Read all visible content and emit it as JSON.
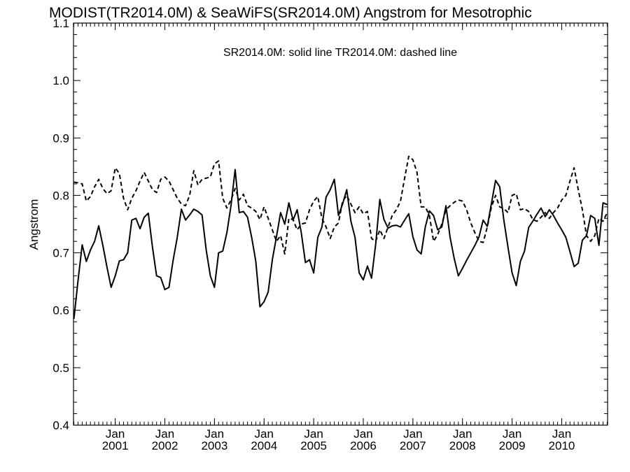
{
  "chart_data": {
    "type": "line",
    "title": "MODIST(TR2014.0M) & SeaWiFS(SR2014.0M)  Angstrom for Mesotrophic",
    "annotation": "SR2014.0M: solid line   TR2014.0M: dashed line",
    "xlabel": "",
    "ylabel": "Angstrom",
    "ylim": [
      0.4,
      1.1
    ],
    "xlim": [
      "2000-03",
      "2010-12"
    ],
    "yticks": [
      "0.4",
      "0.5",
      "0.6",
      "0.7",
      "0.8",
      "0.9",
      "1.0",
      "1.1"
    ],
    "xticks": [
      {
        "month": "Jan",
        "year": "2001",
        "date": "2001-01"
      },
      {
        "month": "Jan",
        "year": "2002",
        "date": "2002-01"
      },
      {
        "month": "Jan",
        "year": "2003",
        "date": "2003-01"
      },
      {
        "month": "Jan",
        "year": "2004",
        "date": "2004-01"
      },
      {
        "month": "Jan",
        "year": "2005",
        "date": "2005-01"
      },
      {
        "month": "Jan",
        "year": "2006",
        "date": "2006-01"
      },
      {
        "month": "Jan",
        "year": "2007",
        "date": "2007-01"
      },
      {
        "month": "Jan",
        "year": "2008",
        "date": "2008-01"
      },
      {
        "month": "Jan",
        "year": "2009",
        "date": "2009-01"
      },
      {
        "month": "Jan",
        "year": "2010",
        "date": "2010-01"
      }
    ],
    "grid": false,
    "series": [
      {
        "name": "SR2014.0M",
        "style": "solid",
        "color": "#000000",
        "points": [
          [
            "2000-03",
            0.585
          ],
          [
            "2000-04",
            0.652
          ],
          [
            "2000-05",
            0.714
          ],
          [
            "2000-06",
            0.685
          ],
          [
            "2000-07",
            0.705
          ],
          [
            "2000-08",
            0.72
          ],
          [
            "2000-09",
            0.747
          ],
          [
            "2000-10",
            0.713
          ],
          [
            "2000-11",
            0.675
          ],
          [
            "2000-12",
            0.64
          ],
          [
            "2001-01",
            0.66
          ],
          [
            "2001-02",
            0.686
          ],
          [
            "2001-03",
            0.688
          ],
          [
            "2001-04",
            0.7
          ],
          [
            "2001-05",
            0.757
          ],
          [
            "2001-06",
            0.76
          ],
          [
            "2001-07",
            0.742
          ],
          [
            "2001-08",
            0.762
          ],
          [
            "2001-09",
            0.769
          ],
          [
            "2001-10",
            0.71
          ],
          [
            "2001-11",
            0.66
          ],
          [
            "2001-12",
            0.657
          ],
          [
            "2002-01",
            0.636
          ],
          [
            "2002-02",
            0.64
          ],
          [
            "2002-03",
            0.687
          ],
          [
            "2002-04",
            0.727
          ],
          [
            "2002-05",
            0.776
          ],
          [
            "2002-06",
            0.757
          ],
          [
            "2002-07",
            0.766
          ],
          [
            "2002-08",
            0.776
          ],
          [
            "2002-09",
            0.772
          ],
          [
            "2002-10",
            0.766
          ],
          [
            "2002-11",
            0.705
          ],
          [
            "2002-12",
            0.66
          ],
          [
            "2003-01",
            0.64
          ],
          [
            "2003-02",
            0.7
          ],
          [
            "2003-03",
            0.703
          ],
          [
            "2003-04",
            0.735
          ],
          [
            "2003-05",
            0.782
          ],
          [
            "2003-06",
            0.845
          ],
          [
            "2003-07",
            0.77
          ],
          [
            "2003-08",
            0.772
          ],
          [
            "2003-09",
            0.762
          ],
          [
            "2003-10",
            0.727
          ],
          [
            "2003-11",
            0.685
          ],
          [
            "2003-12",
            0.606
          ],
          [
            "2004-01",
            0.615
          ],
          [
            "2004-02",
            0.632
          ],
          [
            "2004-03",
            0.688
          ],
          [
            "2004-04",
            0.728
          ],
          [
            "2004-05",
            0.77
          ],
          [
            "2004-06",
            0.75
          ],
          [
            "2004-07",
            0.787
          ],
          [
            "2004-08",
            0.757
          ],
          [
            "2004-09",
            0.775
          ],
          [
            "2004-10",
            0.735
          ],
          [
            "2004-11",
            0.683
          ],
          [
            "2004-12",
            0.688
          ],
          [
            "2005-01",
            0.665
          ],
          [
            "2005-02",
            0.727
          ],
          [
            "2005-03",
            0.745
          ],
          [
            "2005-04",
            0.797
          ],
          [
            "2005-05",
            0.81
          ],
          [
            "2005-06",
            0.828
          ],
          [
            "2005-07",
            0.765
          ],
          [
            "2005-08",
            0.785
          ],
          [
            "2005-09",
            0.81
          ],
          [
            "2005-10",
            0.755
          ],
          [
            "2005-11",
            0.727
          ],
          [
            "2005-12",
            0.665
          ],
          [
            "2006-01",
            0.653
          ],
          [
            "2006-02",
            0.677
          ],
          [
            "2006-03",
            0.656
          ],
          [
            "2006-04",
            0.715
          ],
          [
            "2006-05",
            0.793
          ],
          [
            "2006-06",
            0.758
          ],
          [
            "2006-07",
            0.743
          ],
          [
            "2006-08",
            0.747
          ],
          [
            "2006-09",
            0.748
          ],
          [
            "2006-10",
            0.745
          ],
          [
            "2006-11",
            0.757
          ],
          [
            "2006-12",
            0.768
          ],
          [
            "2007-01",
            0.728
          ],
          [
            "2007-02",
            0.705
          ],
          [
            "2007-03",
            0.698
          ],
          [
            "2007-04",
            0.745
          ],
          [
            "2007-05",
            0.773
          ],
          [
            "2007-06",
            0.765
          ],
          [
            "2007-07",
            0.74
          ],
          [
            "2007-08",
            0.745
          ],
          [
            "2007-09",
            0.782
          ],
          [
            "2007-10",
            0.727
          ],
          [
            "2007-11",
            0.69
          ],
          [
            "2007-12",
            0.66
          ],
          [
            "2008-01",
            0.673
          ],
          [
            "2008-02",
            0.687
          ],
          [
            "2008-03",
            0.7
          ],
          [
            "2008-04",
            0.713
          ],
          [
            "2008-05",
            0.728
          ],
          [
            "2008-06",
            0.757
          ],
          [
            "2008-07",
            0.746
          ],
          [
            "2008-08",
            0.786
          ],
          [
            "2008-09",
            0.826
          ],
          [
            "2008-10",
            0.815
          ],
          [
            "2008-11",
            0.757
          ],
          [
            "2008-12",
            0.71
          ],
          [
            "2009-01",
            0.665
          ],
          [
            "2009-02",
            0.643
          ],
          [
            "2009-03",
            0.685
          ],
          [
            "2009-04",
            0.703
          ],
          [
            "2009-05",
            0.744
          ],
          [
            "2009-06",
            0.755
          ],
          [
            "2009-07",
            0.767
          ],
          [
            "2009-08",
            0.778
          ],
          [
            "2009-09",
            0.763
          ],
          [
            "2009-10",
            0.775
          ],
          [
            "2009-11",
            0.765
          ],
          [
            "2009-12",
            0.752
          ],
          [
            "2010-01",
            0.74
          ],
          [
            "2010-02",
            0.727
          ],
          [
            "2010-03",
            0.702
          ],
          [
            "2010-04",
            0.676
          ],
          [
            "2010-05",
            0.682
          ],
          [
            "2010-06",
            0.722
          ],
          [
            "2010-07",
            0.73
          ],
          [
            "2010-08",
            0.765
          ],
          [
            "2010-09",
            0.76
          ],
          [
            "2010-10",
            0.713
          ],
          [
            "2010-11",
            0.787
          ],
          [
            "2010-12",
            0.784
          ]
        ]
      },
      {
        "name": "TR2014.0M",
        "style": "dashed",
        "color": "#000000",
        "points": [
          [
            "2000-03",
            0.823
          ],
          [
            "2000-04",
            0.822
          ],
          [
            "2000-05",
            0.82
          ],
          [
            "2000-06",
            0.79
          ],
          [
            "2000-07",
            0.798
          ],
          [
            "2000-08",
            0.815
          ],
          [
            "2000-09",
            0.828
          ],
          [
            "2000-10",
            0.812
          ],
          [
            "2000-11",
            0.803
          ],
          [
            "2000-12",
            0.808
          ],
          [
            "2001-01",
            0.848
          ],
          [
            "2001-02",
            0.838
          ],
          [
            "2001-03",
            0.795
          ],
          [
            "2001-04",
            0.775
          ],
          [
            "2001-05",
            0.795
          ],
          [
            "2001-06",
            0.808
          ],
          [
            "2001-07",
            0.825
          ],
          [
            "2001-08",
            0.84
          ],
          [
            "2001-09",
            0.825
          ],
          [
            "2001-10",
            0.81
          ],
          [
            "2001-11",
            0.805
          ],
          [
            "2001-12",
            0.828
          ],
          [
            "2002-01",
            0.832
          ],
          [
            "2002-02",
            0.825
          ],
          [
            "2002-03",
            0.81
          ],
          [
            "2002-04",
            0.795
          ],
          [
            "2002-05",
            0.785
          ],
          [
            "2002-06",
            0.782
          ],
          [
            "2002-07",
            0.8
          ],
          [
            "2002-08",
            0.843
          ],
          [
            "2002-09",
            0.818
          ],
          [
            "2002-10",
            0.828
          ],
          [
            "2002-11",
            0.83
          ],
          [
            "2002-12",
            0.832
          ],
          [
            "2003-01",
            0.855
          ],
          [
            "2003-02",
            0.86
          ],
          [
            "2003-03",
            0.795
          ],
          [
            "2003-04",
            0.778
          ],
          [
            "2003-05",
            0.792
          ],
          [
            "2003-06",
            0.812
          ],
          [
            "2003-07",
            0.792
          ],
          [
            "2003-08",
            0.802
          ],
          [
            "2003-09",
            0.782
          ],
          [
            "2003-10",
            0.778
          ],
          [
            "2003-11",
            0.772
          ],
          [
            "2003-12",
            0.758
          ],
          [
            "2004-01",
            0.78
          ],
          [
            "2004-02",
            0.76
          ],
          [
            "2004-03",
            0.74
          ],
          [
            "2004-04",
            0.72
          ],
          [
            "2004-05",
            0.73
          ],
          [
            "2004-06",
            0.698
          ],
          [
            "2004-07",
            0.76
          ],
          [
            "2004-08",
            0.758
          ],
          [
            "2004-09",
            0.74
          ],
          [
            "2004-10",
            0.75
          ],
          [
            "2004-11",
            0.752
          ],
          [
            "2004-12",
            0.775
          ],
          [
            "2005-01",
            0.79
          ],
          [
            "2005-02",
            0.798
          ],
          [
            "2005-03",
            0.76
          ],
          [
            "2005-04",
            0.745
          ],
          [
            "2005-05",
            0.725
          ],
          [
            "2005-06",
            0.745
          ],
          [
            "2005-07",
            0.752
          ],
          [
            "2005-08",
            0.79
          ],
          [
            "2005-09",
            0.8
          ],
          [
            "2005-10",
            0.785
          ],
          [
            "2005-11",
            0.77
          ],
          [
            "2005-12",
            0.78
          ],
          [
            "2006-01",
            0.768
          ],
          [
            "2006-02",
            0.772
          ],
          [
            "2006-03",
            0.725
          ],
          [
            "2006-04",
            0.72
          ],
          [
            "2006-05",
            0.74
          ],
          [
            "2006-06",
            0.725
          ],
          [
            "2006-07",
            0.745
          ],
          [
            "2006-08",
            0.765
          ],
          [
            "2006-09",
            0.775
          ],
          [
            "2006-10",
            0.79
          ],
          [
            "2006-11",
            0.83
          ],
          [
            "2006-12",
            0.868
          ],
          [
            "2007-01",
            0.862
          ],
          [
            "2007-02",
            0.84
          ],
          [
            "2007-03",
            0.78
          ],
          [
            "2007-04",
            0.78
          ],
          [
            "2007-05",
            0.765
          ],
          [
            "2007-06",
            0.72
          ],
          [
            "2007-07",
            0.732
          ],
          [
            "2007-08",
            0.75
          ],
          [
            "2007-09",
            0.775
          ],
          [
            "2007-10",
            0.782
          ],
          [
            "2007-11",
            0.788
          ],
          [
            "2007-12",
            0.792
          ],
          [
            "2008-01",
            0.79
          ],
          [
            "2008-02",
            0.775
          ],
          [
            "2008-03",
            0.752
          ],
          [
            "2008-04",
            0.735
          ],
          [
            "2008-05",
            0.72
          ],
          [
            "2008-06",
            0.718
          ],
          [
            "2008-07",
            0.745
          ],
          [
            "2008-08",
            0.78
          ],
          [
            "2008-09",
            0.8
          ],
          [
            "2008-10",
            0.78
          ],
          [
            "2008-11",
            0.777
          ],
          [
            "2008-12",
            0.77
          ],
          [
            "2009-01",
            0.8
          ],
          [
            "2009-02",
            0.803
          ],
          [
            "2009-03",
            0.775
          ],
          [
            "2009-04",
            0.777
          ],
          [
            "2009-05",
            0.772
          ],
          [
            "2009-06",
            0.758
          ],
          [
            "2009-07",
            0.755
          ],
          [
            "2009-08",
            0.762
          ],
          [
            "2009-09",
            0.77
          ],
          [
            "2009-10",
            0.76
          ],
          [
            "2009-11",
            0.77
          ],
          [
            "2009-12",
            0.778
          ],
          [
            "2010-01",
            0.792
          ],
          [
            "2010-02",
            0.8
          ],
          [
            "2010-03",
            0.825
          ],
          [
            "2010-04",
            0.848
          ],
          [
            "2010-05",
            0.81
          ],
          [
            "2010-06",
            0.775
          ],
          [
            "2010-07",
            0.73
          ],
          [
            "2010-08",
            0.72
          ],
          [
            "2010-09",
            0.73
          ],
          [
            "2010-10",
            0.76
          ],
          [
            "2010-11",
            0.755
          ],
          [
            "2010-12",
            0.77
          ]
        ]
      }
    ]
  }
}
